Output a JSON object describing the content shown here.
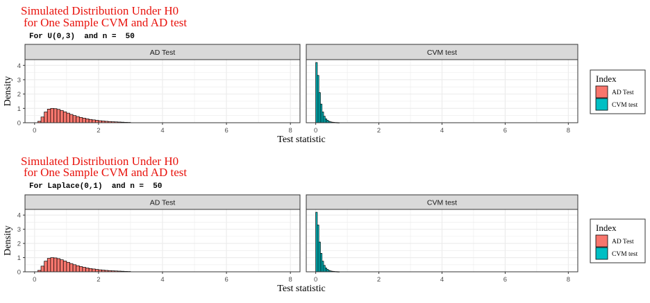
{
  "colors": {
    "title": "#e8120c",
    "ad_fill": "#f8766d",
    "cvm_fill": "#00bfc4",
    "strip_bg": "#d9d9d9",
    "grid": "#ebebeb",
    "panel_border": "#333333"
  },
  "chart_data": [
    {
      "type": "bar",
      "title": "Simulated Distribution Under H0",
      "title_line2": "for One Sample CVM and AD test",
      "subtitle": "For U(0,3)  and n =  50",
      "xlabel": "Test statistic",
      "ylabel": "Density",
      "xlim": [
        -0.3,
        8.3
      ],
      "ylim": [
        0,
        4.4
      ],
      "x_ticks": [
        0,
        2,
        4,
        6,
        8
      ],
      "y_ticks": [
        0,
        1,
        2,
        3,
        4
      ],
      "grid": true,
      "legend": {
        "title": "Index",
        "placement": "right",
        "entries": [
          "AD Test",
          "CVM test"
        ]
      },
      "panels": [
        {
          "name": "AD Test",
          "bin_width": 0.1,
          "bin_starts": [
            0.1,
            0.2,
            0.3,
            0.4,
            0.5,
            0.6,
            0.7,
            0.8,
            0.9,
            1.0,
            1.1,
            1.2,
            1.3,
            1.4,
            1.5,
            1.6,
            1.7,
            1.8,
            1.9,
            2.0,
            2.1,
            2.2,
            2.3,
            2.4,
            2.5,
            2.6,
            2.7,
            2.8,
            2.9
          ],
          "density": [
            0.1,
            0.4,
            0.75,
            0.95,
            1.0,
            0.98,
            0.93,
            0.85,
            0.76,
            0.67,
            0.58,
            0.5,
            0.43,
            0.37,
            0.32,
            0.27,
            0.23,
            0.2,
            0.17,
            0.14,
            0.12,
            0.1,
            0.085,
            0.07,
            0.06,
            0.05,
            0.04,
            0.03,
            0.025
          ],
          "tail_to": 8.1
        },
        {
          "name": "CVM test",
          "bin_width": 0.05,
          "bin_starts": [
            0.0,
            0.05,
            0.1,
            0.15,
            0.2,
            0.25,
            0.3,
            0.35,
            0.4,
            0.45,
            0.5,
            0.55,
            0.6,
            0.65,
            0.7
          ],
          "density": [
            4.2,
            3.3,
            2.1,
            1.3,
            0.75,
            0.45,
            0.27,
            0.17,
            0.1,
            0.06,
            0.04,
            0.03,
            0.02,
            0.015,
            0.01
          ],
          "tail_to": 8.1
        }
      ]
    },
    {
      "type": "bar",
      "title": "Simulated Distribution Under H0",
      "title_line2": "for One Sample CVM and AD test",
      "subtitle": "For Laplace(0,1)  and n =  50",
      "xlabel": "Test statistic",
      "ylabel": "Density",
      "xlim": [
        -0.3,
        8.3
      ],
      "ylim": [
        0,
        4.4
      ],
      "x_ticks": [
        0,
        2,
        4,
        6,
        8
      ],
      "y_ticks": [
        0,
        1,
        2,
        3,
        4
      ],
      "grid": true,
      "legend": {
        "title": "Index",
        "placement": "right",
        "entries": [
          "AD Test",
          "CVM test"
        ]
      },
      "panels": [
        {
          "name": "AD Test",
          "bin_width": 0.1,
          "bin_starts": [
            0.1,
            0.2,
            0.3,
            0.4,
            0.5,
            0.6,
            0.7,
            0.8,
            0.9,
            1.0,
            1.1,
            1.2,
            1.3,
            1.4,
            1.5,
            1.6,
            1.7,
            1.8,
            1.9,
            2.0,
            2.1,
            2.2,
            2.3,
            2.4,
            2.5,
            2.6,
            2.7,
            2.8,
            2.9
          ],
          "density": [
            0.1,
            0.4,
            0.75,
            0.95,
            1.0,
            0.98,
            0.93,
            0.85,
            0.76,
            0.67,
            0.58,
            0.5,
            0.43,
            0.37,
            0.32,
            0.27,
            0.23,
            0.2,
            0.17,
            0.14,
            0.12,
            0.1,
            0.085,
            0.07,
            0.06,
            0.05,
            0.04,
            0.03,
            0.025
          ],
          "tail_to": 8.1
        },
        {
          "name": "CVM test",
          "bin_width": 0.05,
          "bin_starts": [
            0.0,
            0.05,
            0.1,
            0.15,
            0.2,
            0.25,
            0.3,
            0.35,
            0.4,
            0.45,
            0.5,
            0.55,
            0.6,
            0.65,
            0.7
          ],
          "density": [
            4.2,
            3.3,
            2.1,
            1.3,
            0.75,
            0.45,
            0.27,
            0.17,
            0.1,
            0.06,
            0.04,
            0.03,
            0.02,
            0.015,
            0.01
          ],
          "tail_to": 8.1
        }
      ]
    }
  ]
}
